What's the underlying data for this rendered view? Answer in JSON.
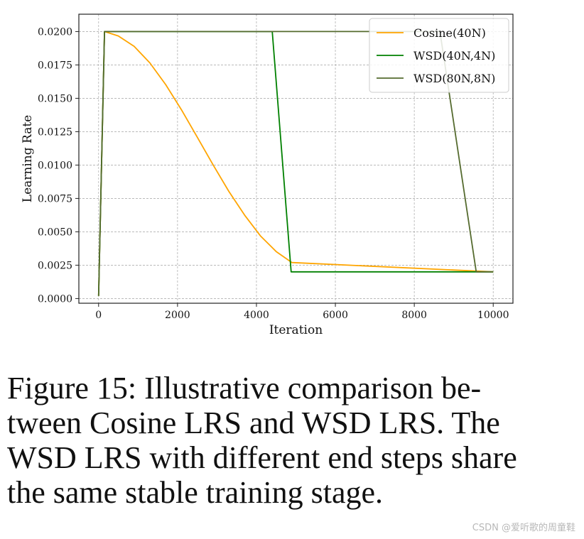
{
  "chart_data": {
    "type": "line",
    "title": "",
    "xlabel": "Iteration",
    "ylabel": "Learning Rate",
    "xlim": [
      -500,
      10500
    ],
    "ylim": [
      -0.00035,
      0.0213
    ],
    "xticks": [
      0,
      2000,
      4000,
      6000,
      8000,
      10000
    ],
    "xtick_labels": [
      "0",
      "2000",
      "4000",
      "6000",
      "8000",
      "10000"
    ],
    "yticks": [
      0.0,
      0.0025,
      0.005,
      0.0075,
      0.01,
      0.0125,
      0.015,
      0.0175,
      0.02
    ],
    "ytick_labels": [
      "0.0000",
      "0.0025",
      "0.0050",
      "0.0075",
      "0.0100",
      "0.0125",
      "0.0150",
      "0.0175",
      "0.0200"
    ],
    "grid": true,
    "legend_position": "top-right",
    "series": [
      {
        "name": "Cosine(40N)",
        "color": "#ffa500",
        "x": [
          0,
          150,
          500,
          900,
          1300,
          1700,
          2100,
          2500,
          2900,
          3300,
          3700,
          4100,
          4500,
          4900,
          10000
        ],
        "y": [
          0.0002,
          0.02,
          0.01967,
          0.01889,
          0.01765,
          0.01603,
          0.01414,
          0.01209,
          0.01002,
          0.00803,
          0.00625,
          0.0047,
          0.00352,
          0.0027,
          0.002
        ]
      },
      {
        "name": "WSD(40N,4N)",
        "color": "#008000",
        "x": [
          0,
          150,
          4400,
          4880,
          10000
        ],
        "y": [
          0.0002,
          0.02,
          0.02,
          0.002,
          0.002
        ]
      },
      {
        "name": "WSD(80N,8N)",
        "color": "#556b2f",
        "x": [
          0,
          150,
          8650,
          9570,
          10000
        ],
        "y": [
          0.0002,
          0.02,
          0.02,
          0.002,
          0.002
        ]
      }
    ]
  },
  "caption": {
    "line1": "Figure 15: Illustrative comparison be-",
    "line2": "tween Cosine LRS and WSD LRS. The",
    "line3": "WSD LRS with different end steps share",
    "line4": "the same stable training stage."
  },
  "watermark": "CSDN @爱听歌的周童鞋"
}
